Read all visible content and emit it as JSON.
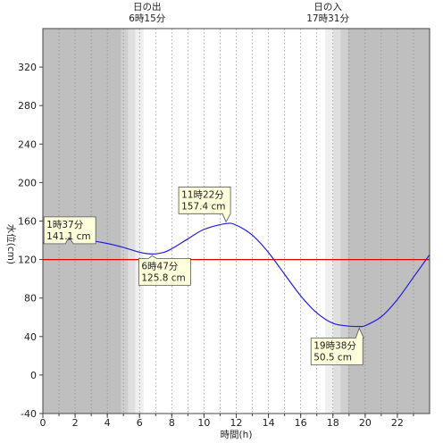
{
  "chart_data": {
    "type": "line",
    "xlabel": "時間(h)",
    "ylabel": "水位(cm)",
    "xlim": [
      0,
      24
    ],
    "ylim": [
      -40,
      360
    ],
    "x_ticks": [
      0,
      2,
      4,
      6,
      8,
      10,
      12,
      14,
      16,
      18,
      20,
      22
    ],
    "y_ticks": [
      -40,
      0,
      40,
      80,
      120,
      160,
      200,
      240,
      280,
      320
    ],
    "grid": "vertical-dotted",
    "reference_line": {
      "y": 120,
      "color": "#e00000"
    },
    "colors": {
      "tide": "#1f1fdd",
      "night": "#bfbfbf",
      "twilight1": "#cfcfcf",
      "twilight2": "#dfdfdf",
      "twilight3": "#efefef"
    },
    "sunrise": {
      "title": "日の出",
      "time_label": "6時15分",
      "time": 6.25
    },
    "sunset": {
      "title": "日の入",
      "time_label": "17時31分",
      "time": 17.52
    },
    "series": [
      {
        "x": [
          0,
          0.5,
          1,
          1.617,
          2,
          3,
          4,
          5,
          6,
          6.783,
          7.5,
          8,
          9,
          10,
          11.367,
          12,
          13,
          14,
          15,
          16,
          17,
          18,
          19,
          19.633,
          20,
          21,
          22,
          23,
          24
        ],
        "values": [
          137.5,
          139.6,
          140.7,
          141.1,
          140.9,
          139.5,
          136.7,
          132.6,
          127.6,
          125.8,
          127.5,
          131.2,
          141.5,
          151.3,
          157.4,
          155.7,
          145.3,
          127.3,
          104.7,
          82.3,
          64.6,
          53.8,
          50.8,
          50.5,
          51.3,
          60.6,
          78.5,
          101.7,
          125.0
        ]
      }
    ],
    "annotations": [
      {
        "time_label": "1時37分",
        "value_label": "141.1 cm",
        "x": 1.617,
        "y": 141.1
      },
      {
        "time_label": "6時47分",
        "value_label": "125.8 cm",
        "x": 6.783,
        "y": 125.8
      },
      {
        "time_label": "11時22分",
        "value_label": "157.4 cm",
        "x": 11.367,
        "y": 157.4
      },
      {
        "time_label": "19時38分",
        "value_label": "50.5 cm",
        "x": 19.633,
        "y": 50.5
      }
    ]
  }
}
